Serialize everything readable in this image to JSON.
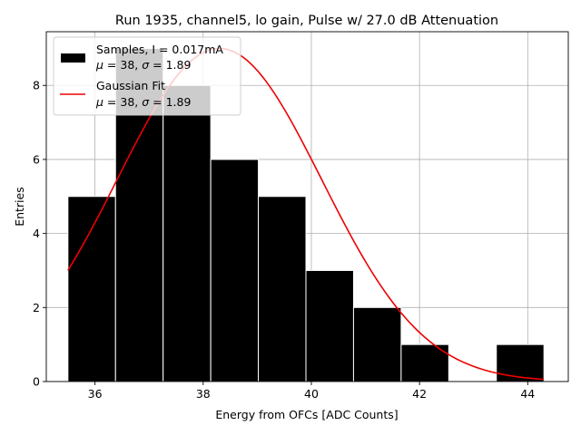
{
  "chart_data": {
    "type": "histogram",
    "title": "Run 1935, channel5, lo gain, Pulse w/ 27.0 dB Attenuation",
    "xlabel": "Energy from OFCs [ADC Counts]",
    "ylabel": "Entries",
    "xlim": [
      35.1,
      44.75
    ],
    "ylim": [
      0,
      9.45
    ],
    "xticks": [
      36,
      38,
      40,
      42,
      44
    ],
    "yticks": [
      0,
      2,
      4,
      6,
      8
    ],
    "grid": true,
    "bar_color": "#000000",
    "fit_color": "#ee0000",
    "bins": [
      {
        "left": 35.5,
        "right": 36.38,
        "count": 5
      },
      {
        "left": 36.38,
        "right": 37.26,
        "count": 9
      },
      {
        "left": 37.26,
        "right": 38.14,
        "count": 8
      },
      {
        "left": 38.14,
        "right": 39.02,
        "count": 6
      },
      {
        "left": 39.02,
        "right": 39.9,
        "count": 5
      },
      {
        "left": 39.9,
        "right": 40.78,
        "count": 3
      },
      {
        "left": 40.78,
        "right": 41.66,
        "count": 2
      },
      {
        "left": 41.66,
        "right": 42.54,
        "count": 1
      },
      {
        "left": 42.54,
        "right": 43.42,
        "count": 0
      },
      {
        "left": 43.42,
        "right": 44.3,
        "count": 1
      }
    ],
    "fit": {
      "name": "Gaussian Fit",
      "mu": 38.3,
      "sigma": 1.89,
      "amplitude": 9.0,
      "x_range": [
        35.5,
        44.3
      ]
    },
    "legend": {
      "position": "upper-left",
      "entries": [
        {
          "line1": "Samples, I = 0.017mA",
          "mu_text": "μ",
          "mu_value": " = 38, ",
          "sigma_text": "σ",
          "sigma_value": " = 1.89"
        },
        {
          "line1": "Gaussian Fit",
          "mu_text": "μ",
          "mu_value": " = 38, ",
          "sigma_text": "σ",
          "sigma_value": " = 1.89"
        }
      ]
    }
  }
}
